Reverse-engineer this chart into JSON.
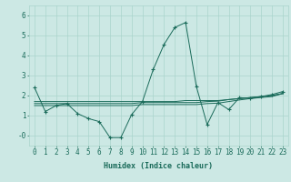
{
  "xlabel": "Humidex (Indice chaleur)",
  "ylabel": "",
  "bg_color": "#cce8e4",
  "line_color": "#1a6b5a",
  "grid_color": "#aad4cc",
  "xlim": [
    -0.5,
    23.5
  ],
  "ylim": [
    -0.5,
    6.5
  ],
  "yticks": [
    0,
    1,
    2,
    3,
    4,
    5,
    6
  ],
  "ytick_labels": [
    "-0",
    "1",
    "2",
    "3",
    "4",
    "5",
    "6"
  ],
  "xticks": [
    0,
    1,
    2,
    3,
    4,
    5,
    6,
    7,
    8,
    9,
    10,
    11,
    12,
    13,
    14,
    15,
    16,
    17,
    18,
    19,
    20,
    21,
    22,
    23
  ],
  "series": [
    [
      2.4,
      1.2,
      1.5,
      1.6,
      1.1,
      0.85,
      0.7,
      -0.1,
      -0.1,
      1.05,
      1.7,
      3.3,
      4.55,
      5.4,
      5.65,
      2.45,
      0.55,
      1.65,
      1.3,
      1.9,
      1.85,
      1.95,
      2.05,
      2.2
    ],
    [
      1.7,
      1.7,
      1.7,
      1.7,
      1.7,
      1.7,
      1.7,
      1.7,
      1.7,
      1.7,
      1.7,
      1.7,
      1.7,
      1.7,
      1.75,
      1.75,
      1.75,
      1.75,
      1.8,
      1.85,
      1.9,
      1.95,
      2.0,
      2.1
    ],
    [
      1.6,
      1.6,
      1.6,
      1.6,
      1.6,
      1.6,
      1.6,
      1.6,
      1.6,
      1.6,
      1.65,
      1.65,
      1.65,
      1.65,
      1.65,
      1.65,
      1.7,
      1.72,
      1.8,
      1.85,
      1.9,
      1.95,
      2.0,
      2.1
    ],
    [
      1.5,
      1.5,
      1.5,
      1.5,
      1.5,
      1.5,
      1.5,
      1.5,
      1.5,
      1.5,
      1.55,
      1.55,
      1.55,
      1.55,
      1.55,
      1.55,
      1.6,
      1.62,
      1.7,
      1.78,
      1.85,
      1.9,
      1.95,
      2.1
    ]
  ],
  "main_series_idx": 0,
  "font_color": "#1a6b5a",
  "fontsize_xlabel": 6,
  "fontsize_ticks": 5.5
}
